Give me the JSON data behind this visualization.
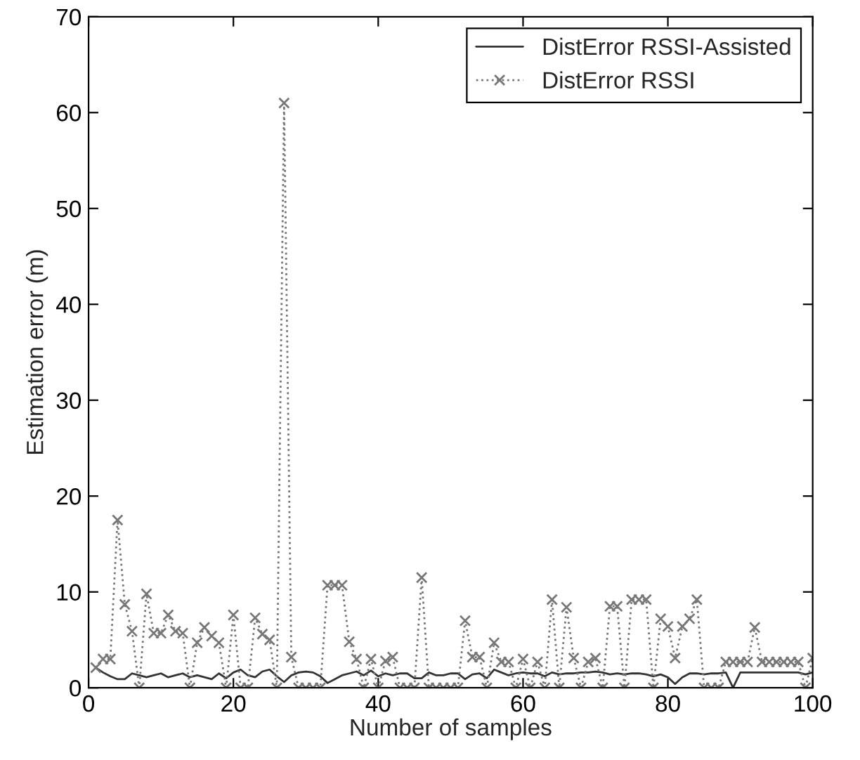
{
  "chart_data": {
    "type": "line",
    "xlabel": "Number of samples",
    "ylabel": "Estimation error (m)",
    "x": [
      1,
      2,
      3,
      4,
      5,
      6,
      7,
      8,
      9,
      10,
      11,
      12,
      13,
      14,
      15,
      16,
      17,
      18,
      19,
      20,
      21,
      22,
      23,
      24,
      25,
      26,
      27,
      28,
      29,
      30,
      31,
      32,
      33,
      34,
      35,
      36,
      37,
      38,
      39,
      40,
      41,
      42,
      43,
      44,
      45,
      46,
      47,
      48,
      49,
      50,
      51,
      52,
      53,
      54,
      55,
      56,
      57,
      58,
      59,
      60,
      61,
      62,
      63,
      64,
      65,
      66,
      67,
      68,
      69,
      70,
      71,
      72,
      73,
      74,
      75,
      76,
      77,
      78,
      79,
      80,
      81,
      82,
      83,
      84,
      85,
      86,
      87,
      88,
      89,
      90,
      91,
      92,
      93,
      94,
      95,
      96,
      97,
      98,
      99,
      100
    ],
    "series": [
      {
        "name": "DistError RSSI-Assisted",
        "color": "#333333",
        "line_style": "solid",
        "marker": "none",
        "values": [
          2.1,
          1.6,
          1.2,
          0.9,
          0.9,
          1.5,
          1.3,
          1.1,
          1.3,
          1.5,
          1.1,
          1.3,
          1.5,
          1.1,
          1.3,
          1.1,
          0.9,
          1.5,
          1.0,
          1.6,
          1.9,
          1.3,
          1.1,
          1.7,
          1.9,
          1.2,
          0.6,
          1.3,
          1.6,
          1.7,
          1.6,
          1.2,
          0.5,
          0.9,
          1.3,
          1.5,
          1.7,
          1.3,
          1.8,
          1.2,
          1.5,
          1.3,
          1.5,
          1.5,
          1.0,
          1.0,
          1.6,
          1.3,
          1.3,
          1.5,
          1.5,
          0.9,
          1.4,
          1.5,
          1.0,
          1.9,
          1.6,
          1.3,
          1.5,
          1.6,
          1.5,
          1.5,
          1.2,
          1.6,
          1.4,
          1.5,
          1.5,
          1.6,
          1.6,
          1.7,
          1.6,
          1.4,
          1.5,
          1.4,
          1.5,
          1.5,
          1.4,
          1.2,
          1.4,
          1.1,
          0.4,
          1.1,
          1.5,
          1.5,
          1.4,
          1.5,
          1.5,
          1.6,
          0.0,
          1.6,
          1.6,
          1.6,
          1.6,
          1.6,
          1.6,
          1.6,
          1.6,
          1.6,
          1.4,
          1.6
        ]
      },
      {
        "name": "DistError RSSI",
        "color": "#777777",
        "line_style": "dotted",
        "marker": "cross",
        "values": [
          2.1,
          3.0,
          3.0,
          17.5,
          8.7,
          5.9,
          0,
          9.8,
          5.7,
          5.7,
          7.6,
          5.9,
          5.7,
          0,
          4.7,
          6.3,
          5.4,
          4.7,
          0,
          7.6,
          0,
          0,
          7.3,
          5.6,
          5.0,
          0,
          61,
          3.2,
          0,
          0,
          0,
          0,
          10.7,
          10.7,
          10.7,
          4.8,
          3.0,
          0,
          3.0,
          0,
          2.8,
          3.2,
          0,
          0,
          0,
          11.5,
          0,
          0,
          0,
          0,
          0,
          7.0,
          3.2,
          3.2,
          0,
          4.7,
          2.7,
          2.7,
          0,
          3.0,
          0,
          2.7,
          0,
          9.2,
          0,
          8.4,
          3.1,
          0,
          2.7,
          3.1,
          0,
          8.5,
          8.5,
          0,
          9.2,
          9.2,
          9.2,
          0,
          7.2,
          6.4,
          3.1,
          6.4,
          7.2,
          9.2,
          0,
          0,
          0,
          2.7,
          2.7,
          2.7,
          2.7,
          6.3,
          2.7,
          2.7,
          2.7,
          2.7,
          2.7,
          2.7,
          0,
          3.1
        ]
      }
    ],
    "xlim": [
      0,
      100
    ],
    "xticks": [
      0,
      20,
      40,
      60,
      80,
      100
    ],
    "ylim": [
      0,
      70
    ],
    "yticks": [
      0,
      10,
      20,
      30,
      40,
      50,
      60,
      70
    ],
    "grid": false,
    "legend": "top right"
  }
}
